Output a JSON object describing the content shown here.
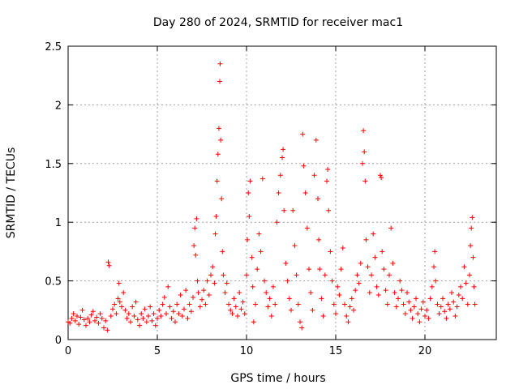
{
  "chart_data": {
    "type": "scatter",
    "title": "Day 280 of 2024, SRMTID for receiver mac1",
    "xlabel": "GPS time / hours",
    "ylabel": "SRMTID / TECUs",
    "xlim": [
      0,
      24
    ],
    "ylim": [
      0,
      2.5
    ],
    "xticks": [
      0,
      5,
      10,
      15,
      20
    ],
    "yticks": [
      0,
      0.5,
      1,
      1.5,
      2,
      2.5
    ],
    "xtick_labels": [
      "0",
      "5",
      "10",
      "15",
      "20"
    ],
    "ytick_labels": [
      "0",
      "0.5",
      "1",
      "1.5",
      "2",
      "2.5"
    ],
    "grid": true,
    "marker": "+",
    "color": "#ff0000",
    "series": [
      {
        "name": "SRMTID",
        "points": [
          [
            0.0,
            0.15
          ],
          [
            0.1,
            0.14
          ],
          [
            0.2,
            0.18
          ],
          [
            0.3,
            0.22
          ],
          [
            0.4,
            0.16
          ],
          [
            0.5,
            0.2
          ],
          [
            0.6,
            0.13
          ],
          [
            0.7,
            0.19
          ],
          [
            0.8,
            0.25
          ],
          [
            0.9,
            0.17
          ],
          [
            1.0,
            0.12
          ],
          [
            1.1,
            0.18
          ],
          [
            1.2,
            0.15
          ],
          [
            1.3,
            0.21
          ],
          [
            1.4,
            0.24
          ],
          [
            1.5,
            0.16
          ],
          [
            1.6,
            0.19
          ],
          [
            1.7,
            0.14
          ],
          [
            1.8,
            0.22
          ],
          [
            1.9,
            0.18
          ],
          [
            2.0,
            0.1
          ],
          [
            2.1,
            0.16
          ],
          [
            2.2,
            0.08
          ],
          [
            2.25,
            0.66
          ],
          [
            2.3,
            0.63
          ],
          [
            2.4,
            0.2
          ],
          [
            2.5,
            0.26
          ],
          [
            2.6,
            0.3
          ],
          [
            2.7,
            0.22
          ],
          [
            2.8,
            0.35
          ],
          [
            2.85,
            0.48
          ],
          [
            2.9,
            0.32
          ],
          [
            3.0,
            0.28
          ],
          [
            3.1,
            0.4
          ],
          [
            3.2,
            0.25
          ],
          [
            3.3,
            0.18
          ],
          [
            3.4,
            0.22
          ],
          [
            3.5,
            0.15
          ],
          [
            3.6,
            0.28
          ],
          [
            3.7,
            0.2
          ],
          [
            3.8,
            0.32
          ],
          [
            3.9,
            0.17
          ],
          [
            4.0,
            0.12
          ],
          [
            4.1,
            0.22
          ],
          [
            4.2,
            0.18
          ],
          [
            4.3,
            0.26
          ],
          [
            4.4,
            0.15
          ],
          [
            4.5,
            0.2
          ],
          [
            4.6,
            0.28
          ],
          [
            4.7,
            0.16
          ],
          [
            4.8,
            0.22
          ],
          [
            4.9,
            0.12
          ],
          [
            5.0,
            0.18
          ],
          [
            5.1,
            0.25
          ],
          [
            5.2,
            0.2
          ],
          [
            5.3,
            0.3
          ],
          [
            5.4,
            0.36
          ],
          [
            5.5,
            0.22
          ],
          [
            5.6,
            0.45
          ],
          [
            5.7,
            0.28
          ],
          [
            5.8,
            0.18
          ],
          [
            5.9,
            0.24
          ],
          [
            6.0,
            0.15
          ],
          [
            6.1,
            0.3
          ],
          [
            6.2,
            0.22
          ],
          [
            6.3,
            0.38
          ],
          [
            6.4,
            0.2
          ],
          [
            6.5,
            0.26
          ],
          [
            6.6,
            0.42
          ],
          [
            6.7,
            0.18
          ],
          [
            6.8,
            0.3
          ],
          [
            6.9,
            0.24
          ],
          [
            7.0,
            0.36
          ],
          [
            7.05,
            0.8
          ],
          [
            7.1,
            0.95
          ],
          [
            7.15,
            0.72
          ],
          [
            7.2,
            1.03
          ],
          [
            7.25,
            0.5
          ],
          [
            7.3,
            0.4
          ],
          [
            7.4,
            0.28
          ],
          [
            7.5,
            0.34
          ],
          [
            7.6,
            0.42
          ],
          [
            7.7,
            0.3
          ],
          [
            7.8,
            0.5
          ],
          [
            7.9,
            0.38
          ],
          [
            8.0,
            0.55
          ],
          [
            8.1,
            0.62
          ],
          [
            8.2,
            0.48
          ],
          [
            8.25,
            0.9
          ],
          [
            8.3,
            1.05
          ],
          [
            8.35,
            1.35
          ],
          [
            8.4,
            1.58
          ],
          [
            8.45,
            1.8
          ],
          [
            8.5,
            2.2
          ],
          [
            8.52,
            2.35
          ],
          [
            8.55,
            1.7
          ],
          [
            8.6,
            1.2
          ],
          [
            8.65,
            0.75
          ],
          [
            8.7,
            0.55
          ],
          [
            8.8,
            0.4
          ],
          [
            8.9,
            0.48
          ],
          [
            9.0,
            0.3
          ],
          [
            9.1,
            0.25
          ],
          [
            9.2,
            0.22
          ],
          [
            9.3,
            0.35
          ],
          [
            9.4,
            0.28
          ],
          [
            9.5,
            0.2
          ],
          [
            9.6,
            0.4
          ],
          [
            9.7,
            0.26
          ],
          [
            9.8,
            0.32
          ],
          [
            9.9,
            0.22
          ],
          [
            10.0,
            0.55
          ],
          [
            10.05,
            0.85
          ],
          [
            10.1,
            1.25
          ],
          [
            10.15,
            1.05
          ],
          [
            10.2,
            1.35
          ],
          [
            10.3,
            0.7
          ],
          [
            10.35,
            0.45
          ],
          [
            10.4,
            0.15
          ],
          [
            10.5,
            0.3
          ],
          [
            10.6,
            0.6
          ],
          [
            10.7,
            0.9
          ],
          [
            10.8,
            0.75
          ],
          [
            10.9,
            1.37
          ],
          [
            11.0,
            0.5
          ],
          [
            11.1,
            0.4
          ],
          [
            11.2,
            0.28
          ],
          [
            11.3,
            0.35
          ],
          [
            11.4,
            0.2
          ],
          [
            11.5,
            0.45
          ],
          [
            11.6,
            0.3
          ],
          [
            11.7,
            1.0
          ],
          [
            11.8,
            1.25
          ],
          [
            11.9,
            1.4
          ],
          [
            12.0,
            1.55
          ],
          [
            12.05,
            1.62
          ],
          [
            12.1,
            1.1
          ],
          [
            12.2,
            0.65
          ],
          [
            12.3,
            0.5
          ],
          [
            12.4,
            0.35
          ],
          [
            12.5,
            0.25
          ],
          [
            12.6,
            1.1
          ],
          [
            12.7,
            0.8
          ],
          [
            12.8,
            0.55
          ],
          [
            12.9,
            0.3
          ],
          [
            13.0,
            0.15
          ],
          [
            13.1,
            0.1
          ],
          [
            13.15,
            1.75
          ],
          [
            13.2,
            1.48
          ],
          [
            13.3,
            1.25
          ],
          [
            13.4,
            0.95
          ],
          [
            13.5,
            0.6
          ],
          [
            13.6,
            0.4
          ],
          [
            13.7,
            0.25
          ],
          [
            13.8,
            1.4
          ],
          [
            13.9,
            1.7
          ],
          [
            14.0,
            1.2
          ],
          [
            14.05,
            0.85
          ],
          [
            14.1,
            0.6
          ],
          [
            14.2,
            0.35
          ],
          [
            14.3,
            0.2
          ],
          [
            14.4,
            0.55
          ],
          [
            14.5,
            1.35
          ],
          [
            14.55,
            1.45
          ],
          [
            14.6,
            1.1
          ],
          [
            14.7,
            0.75
          ],
          [
            14.8,
            0.5
          ],
          [
            14.9,
            0.3
          ],
          [
            15.0,
            0.22
          ],
          [
            15.1,
            0.45
          ],
          [
            15.2,
            0.38
          ],
          [
            15.3,
            0.6
          ],
          [
            15.4,
            0.78
          ],
          [
            15.5,
            0.3
          ],
          [
            15.6,
            0.2
          ],
          [
            15.7,
            0.15
          ],
          [
            15.8,
            0.28
          ],
          [
            15.9,
            0.35
          ],
          [
            16.0,
            0.25
          ],
          [
            16.1,
            0.42
          ],
          [
            16.2,
            0.55
          ],
          [
            16.3,
            0.48
          ],
          [
            16.4,
            0.65
          ],
          [
            16.5,
            1.5
          ],
          [
            16.55,
            1.78
          ],
          [
            16.6,
            1.6
          ],
          [
            16.65,
            1.35
          ],
          [
            16.7,
            0.85
          ],
          [
            16.8,
            0.62
          ],
          [
            16.9,
            0.4
          ],
          [
            17.0,
            0.55
          ],
          [
            17.1,
            0.9
          ],
          [
            17.2,
            0.7
          ],
          [
            17.3,
            0.45
          ],
          [
            17.4,
            0.38
          ],
          [
            17.5,
            1.4
          ],
          [
            17.55,
            1.38
          ],
          [
            17.6,
            0.75
          ],
          [
            17.7,
            0.6
          ],
          [
            17.8,
            0.42
          ],
          [
            17.9,
            0.3
          ],
          [
            18.0,
            0.55
          ],
          [
            18.1,
            0.95
          ],
          [
            18.2,
            0.65
          ],
          [
            18.3,
            0.4
          ],
          [
            18.4,
            0.28
          ],
          [
            18.5,
            0.35
          ],
          [
            18.6,
            0.5
          ],
          [
            18.7,
            0.42
          ],
          [
            18.8,
            0.3
          ],
          [
            18.9,
            0.22
          ],
          [
            19.0,
            0.4
          ],
          [
            19.1,
            0.32
          ],
          [
            19.2,
            0.25
          ],
          [
            19.3,
            0.18
          ],
          [
            19.4,
            0.28
          ],
          [
            19.5,
            0.35
          ],
          [
            19.6,
            0.22
          ],
          [
            19.7,
            0.15
          ],
          [
            19.8,
            0.26
          ],
          [
            19.9,
            0.32
          ],
          [
            20.0,
            0.2
          ],
          [
            20.1,
            0.25
          ],
          [
            20.2,
            0.18
          ],
          [
            20.3,
            0.35
          ],
          [
            20.4,
            0.45
          ],
          [
            20.5,
            0.62
          ],
          [
            20.55,
            0.75
          ],
          [
            20.6,
            0.5
          ],
          [
            20.7,
            0.3
          ],
          [
            20.8,
            0.22
          ],
          [
            20.9,
            0.28
          ],
          [
            21.0,
            0.35
          ],
          [
            21.1,
            0.24
          ],
          [
            21.2,
            0.18
          ],
          [
            21.3,
            0.3
          ],
          [
            21.4,
            0.26
          ],
          [
            21.5,
            0.4
          ],
          [
            21.6,
            0.32
          ],
          [
            21.7,
            0.2
          ],
          [
            21.8,
            0.28
          ],
          [
            21.9,
            0.38
          ],
          [
            22.0,
            0.45
          ],
          [
            22.1,
            0.35
          ],
          [
            22.2,
            0.62
          ],
          [
            22.3,
            0.48
          ],
          [
            22.4,
            0.3
          ],
          [
            22.5,
            0.55
          ],
          [
            22.55,
            0.8
          ],
          [
            22.6,
            0.95
          ],
          [
            22.65,
            1.04
          ],
          [
            22.7,
            0.7
          ],
          [
            22.75,
            0.45
          ],
          [
            22.8,
            0.3
          ]
        ]
      }
    ]
  }
}
